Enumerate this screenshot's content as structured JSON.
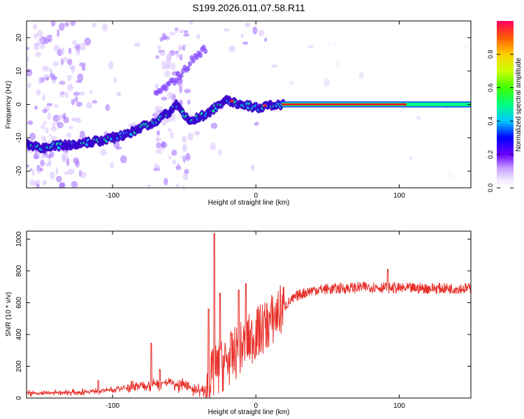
{
  "title": "S199.2026.011.07.58.R11",
  "colors": {
    "line": "#e8302a",
    "spec_dark": "#3a00cc",
    "spec_peak": "#ff1a1a"
  },
  "chart_data": [
    {
      "type": "heatmap",
      "name": "spectrogram",
      "xlabel": "Height of straight line (km)",
      "ylabel": "Frequency (Hz)",
      "xlim": [
        -160,
        150
      ],
      "ylim": [
        -25,
        25
      ],
      "xticks": [
        -100,
        0,
        100
      ],
      "yticks": [
        -20,
        -10,
        0,
        10,
        20
      ],
      "grid": false,
      "ridge": {
        "x": [
          -160,
          -150,
          -140,
          -130,
          -120,
          -110,
          -100,
          -90,
          -80,
          -70,
          -60,
          -55,
          -50,
          -45,
          -40,
          -35,
          -30,
          -25,
          -20,
          -15,
          -10,
          -5,
          0,
          10,
          20,
          150
        ],
        "freq": [
          -12,
          -13,
          -12.5,
          -12,
          -11.5,
          -11,
          -10,
          -9,
          -7,
          -5,
          -2,
          0,
          -3,
          -5,
          -4,
          -3,
          -1.5,
          0.5,
          1,
          0.5,
          -0.5,
          -0.5,
          -1,
          -0.5,
          0,
          0
        ]
      },
      "upper_branch": {
        "x": [
          -70,
          -60,
          -50,
          -45,
          -40,
          -35
        ],
        "freq": [
          3,
          6,
          10,
          13,
          15,
          17
        ]
      },
      "colorbar": {
        "label": "Normalized spectral amplitude",
        "range": [
          0,
          1
        ],
        "ticks": [
          "0.0",
          "0.2",
          "0.4",
          "0.6",
          "0.8"
        ]
      }
    },
    {
      "type": "line",
      "name": "snr",
      "xlabel": "Height of straight line (km)",
      "ylabel": "SNR (10 * v/v)",
      "xlim": [
        -160,
        150
      ],
      "ylim": [
        0,
        1050
      ],
      "xticks": [
        -100,
        0,
        100
      ],
      "yticks": [
        0,
        200,
        400,
        600,
        800,
        1000
      ],
      "grid": false,
      "baseline": {
        "x": [
          -160,
          -130,
          -100,
          -80,
          -60,
          -40,
          -35,
          -30,
          -20,
          -10,
          0,
          10,
          20,
          30,
          40,
          60,
          80,
          100,
          120,
          150
        ],
        "y": [
          30,
          35,
          50,
          80,
          100,
          50,
          40,
          150,
          230,
          320,
          400,
          480,
          580,
          650,
          680,
          690,
          700,
          690,
          690,
          690
        ]
      },
      "spikes": [
        {
          "x": -73,
          "y": 345
        },
        {
          "x": -67,
          "y": 180
        },
        {
          "x": -110,
          "y": 110
        },
        {
          "x": -29,
          "y": 1035
        },
        {
          "x": -33,
          "y": 560
        },
        {
          "x": -25,
          "y": 660
        },
        {
          "x": -12,
          "y": 680
        },
        {
          "x": -7,
          "y": 720
        },
        {
          "x": 92,
          "y": 810
        }
      ]
    }
  ]
}
